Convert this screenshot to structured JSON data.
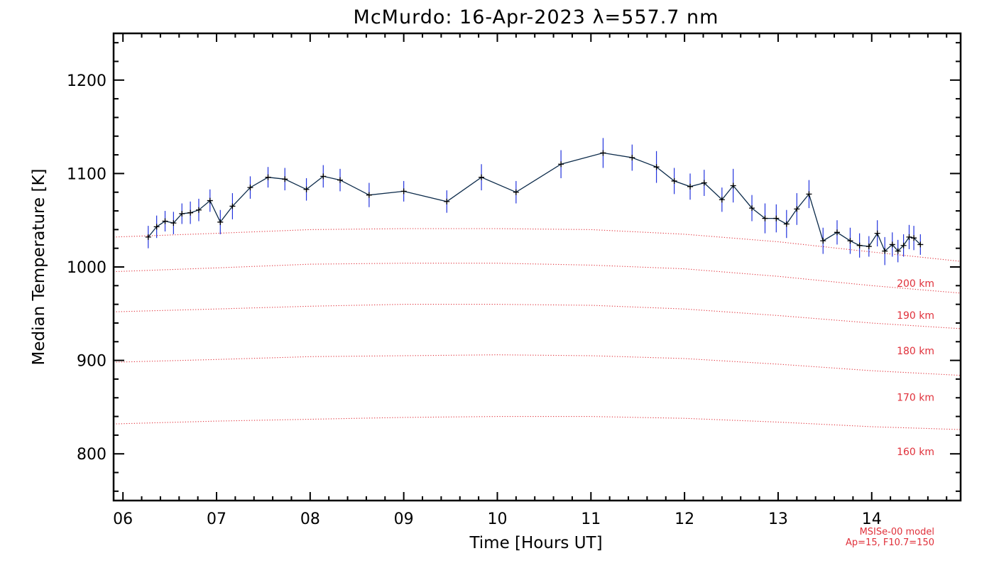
{
  "chart_data": {
    "type": "line",
    "title": "McMurdo: 16-Apr-2023 λ=557.7 nm",
    "xlabel": "Time [Hours UT]",
    "ylabel": "Median Temperature [K]",
    "xlim": [
      5.9,
      14.95
    ],
    "ylim": [
      750,
      1250
    ],
    "x_ticks": [
      6,
      7,
      8,
      9,
      10,
      11,
      12,
      13,
      14
    ],
    "x_tick_labels": [
      "06",
      "07",
      "08",
      "09",
      "10",
      "11",
      "12",
      "13",
      "14"
    ],
    "y_ticks": [
      800,
      900,
      1000,
      1100,
      1200
    ],
    "y_tick_labels": [
      "800",
      "900",
      "1000",
      "1100",
      "1200"
    ],
    "grid": false,
    "series": [
      {
        "style": "line-with-plus-markers",
        "color": "#0b2a4a",
        "error_color": "#2233dd",
        "x": [
          6.27,
          6.36,
          6.45,
          6.54,
          6.63,
          6.72,
          6.81,
          6.93,
          7.04,
          7.17,
          7.36,
          7.55,
          7.73,
          7.96,
          8.14,
          8.32,
          8.63,
          9.0,
          9.46,
          9.83,
          10.2,
          10.68,
          11.13,
          11.44,
          11.7,
          11.89,
          12.06,
          12.21,
          12.4,
          12.52,
          12.72,
          12.86,
          12.98,
          13.09,
          13.2,
          13.33,
          13.48,
          13.63,
          13.77,
          13.87,
          13.97,
          14.06,
          14.14,
          14.22,
          14.28,
          14.34,
          14.4,
          14.45,
          14.52
        ],
        "y": [
          1032,
          1043,
          1049,
          1047,
          1057,
          1058,
          1061,
          1071,
          1048,
          1065,
          1085,
          1096,
          1094,
          1083,
          1097,
          1093,
          1077,
          1081,
          1070,
          1096,
          1080,
          1110,
          1122,
          1117,
          1107,
          1092,
          1086,
          1090,
          1072,
          1087,
          1063,
          1052,
          1052,
          1046,
          1062,
          1078,
          1028,
          1037,
          1028,
          1023,
          1022,
          1036,
          1017,
          1024,
          1017,
          1023,
          1032,
          1031,
          1024
        ],
        "error": [
          12,
          12,
          11,
          12,
          11,
          12,
          12,
          12,
          13,
          14,
          12,
          11,
          12,
          12,
          12,
          12,
          13,
          11,
          12,
          14,
          12,
          15,
          16,
          14,
          17,
          14,
          14,
          14,
          13,
          18,
          14,
          16,
          15,
          15,
          17,
          15,
          14,
          13,
          14,
          13,
          11,
          14,
          15,
          13,
          12,
          12,
          13,
          13,
          11
        ]
      }
    ],
    "model_curves": {
      "color": "#e0303a",
      "style": "dotted",
      "x": [
        5.9,
        7.0,
        8.0,
        9.0,
        10.0,
        11.0,
        12.0,
        13.0,
        14.0,
        14.95
      ],
      "curves": [
        {
          "label": "200 km",
          "y": [
            1032,
            1036,
            1040,
            1041,
            1041,
            1040,
            1035,
            1027,
            1016,
            1006
          ]
        },
        {
          "label": "190 km",
          "y": [
            995,
            999,
            1003,
            1004,
            1004,
            1002,
            998,
            990,
            980,
            972
          ]
        },
        {
          "label": "180 km",
          "y": [
            952,
            955,
            958,
            960,
            960,
            959,
            955,
            948,
            940,
            934
          ]
        },
        {
          "label": "170 km",
          "y": [
            898,
            901,
            904,
            905,
            906,
            905,
            902,
            896,
            889,
            884
          ]
        },
        {
          "label": "160 km",
          "y": [
            832,
            835,
            837,
            839,
            840,
            840,
            838,
            834,
            829,
            826
          ]
        }
      ]
    },
    "annotations": [
      "MSISe-00 model",
      "Ap=15, F10.7=150"
    ]
  }
}
